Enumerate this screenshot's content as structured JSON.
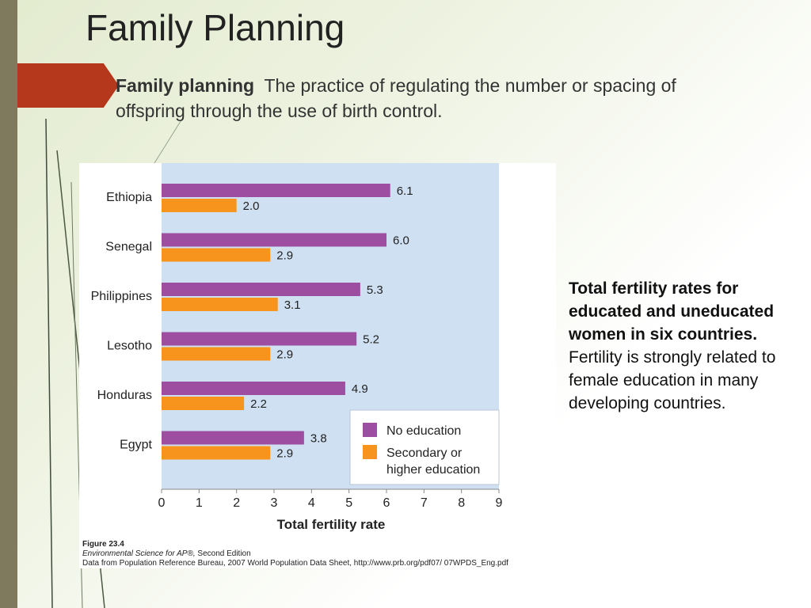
{
  "slide": {
    "title": "Family Planning",
    "definition_term": "Family planning",
    "definition_text": "The practice of regulating the number or spacing of offspring through the use of birth control."
  },
  "figure": {
    "number": "Figure 23.4",
    "book_title": "Environmental Science for AP®,",
    "edition": "Second Edition",
    "source": "Data from Population Reference Bureau, 2007 World Population Data Sheet, http://www.prb.org/pdf07/ 07WPDS_Eng.pdf"
  },
  "side_note": {
    "lead": "Total fertility rates for educated and uneducated women in six countries.",
    "body": "Fertility is strongly related to female education in many developing countries."
  },
  "colors": {
    "no_education": "#9e4ea0",
    "secondary": "#f7941d",
    "plot_bg": "#cfe0f3",
    "accent": "#b5381c"
  },
  "chart_data": {
    "type": "bar",
    "orientation": "horizontal",
    "categories": [
      "Ethiopia",
      "Senegal",
      "Philippines",
      "Lesotho",
      "Honduras",
      "Egypt"
    ],
    "series": [
      {
        "name": "No education",
        "values": [
          6.1,
          6.0,
          5.3,
          5.2,
          4.9,
          3.8
        ]
      },
      {
        "name": "Secondary or higher education",
        "values": [
          2.0,
          2.9,
          3.1,
          2.9,
          2.2,
          2.9
        ]
      }
    ],
    "legend_labels": [
      "No education",
      "Secondary or",
      "higher education"
    ],
    "xlabel": "Total fertility rate",
    "ylabel": "",
    "xlim": [
      0,
      9
    ],
    "xticks": [
      "0",
      "1",
      "2",
      "3",
      "4",
      "5",
      "6",
      "7",
      "8",
      "9"
    ],
    "value_labels": [
      [
        "6.1",
        "6.0",
        "5.3",
        "5.2",
        "4.9",
        "3.8"
      ],
      [
        "2.0",
        "2.9",
        "3.1",
        "2.9",
        "2.2",
        "2.9"
      ]
    ],
    "legend_position": "bottom-right",
    "grid": false
  }
}
